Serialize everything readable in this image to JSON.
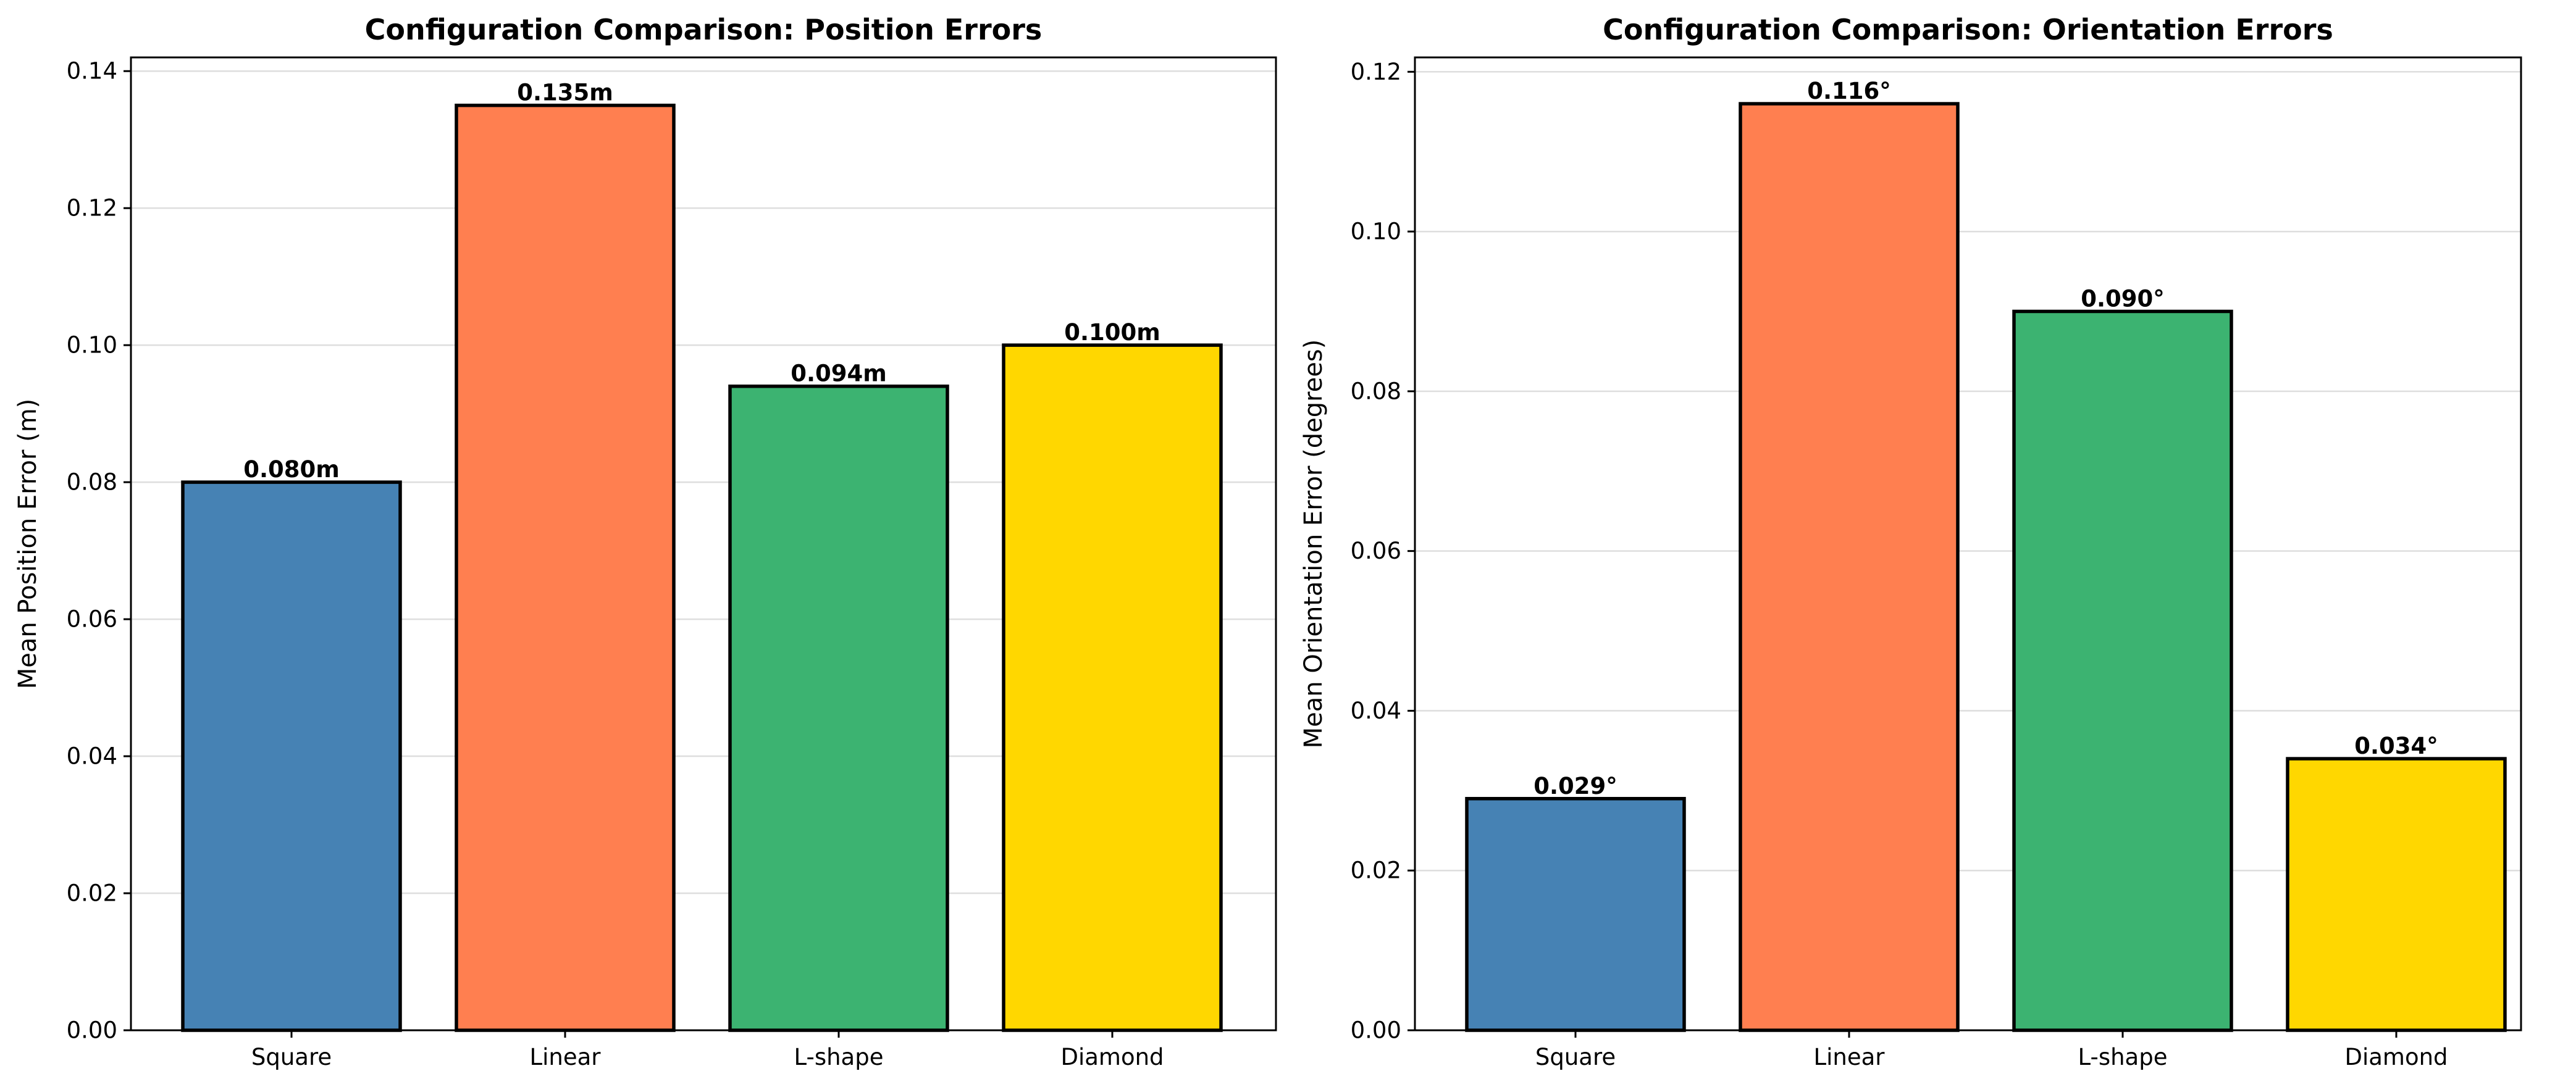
{
  "chart_data": [
    {
      "type": "bar",
      "title": "Configuration Comparison: Position Errors",
      "xlabel": "",
      "ylabel": "Mean Position Error (m)",
      "categories": [
        "Square",
        "Linear",
        "L-shape",
        "Diamond"
      ],
      "values": [
        0.08,
        0.135,
        0.094,
        0.1
      ],
      "value_labels": [
        "0.080m",
        "0.135m",
        "0.094m",
        "0.100m"
      ],
      "colors": [
        "#4682b4",
        "#ff7f50",
        "#3cb371",
        "#ffd700"
      ],
      "ylim": [
        0,
        0.142
      ],
      "yticks": [
        0.0,
        0.02,
        0.04,
        0.06,
        0.08,
        0.1,
        0.12,
        0.14
      ],
      "ytick_labels": [
        "0.00",
        "0.02",
        "0.04",
        "0.06",
        "0.08",
        "0.10",
        "0.12",
        "0.14"
      ],
      "grid": "y",
      "legend": "none"
    },
    {
      "type": "bar",
      "title": "Configuration Comparison: Orientation Errors",
      "xlabel": "",
      "ylabel": "Mean Orientation Error (degrees)",
      "categories": [
        "Square",
        "Linear",
        "L-shape",
        "Diamond"
      ],
      "values": [
        0.029,
        0.116,
        0.09,
        0.034
      ],
      "value_labels": [
        "0.029°",
        "0.116°",
        "0.090°",
        "0.034°"
      ],
      "colors": [
        "#4682b4",
        "#ff7f50",
        "#3cb371",
        "#ffd700"
      ],
      "ylim": [
        0,
        0.1218
      ],
      "yticks": [
        0.0,
        0.02,
        0.04,
        0.06,
        0.08,
        0.1,
        0.12
      ],
      "ytick_labels": [
        "0.00",
        "0.02",
        "0.04",
        "0.06",
        "0.08",
        "0.10",
        "0.12"
      ],
      "grid": "y",
      "legend": "none"
    }
  ]
}
